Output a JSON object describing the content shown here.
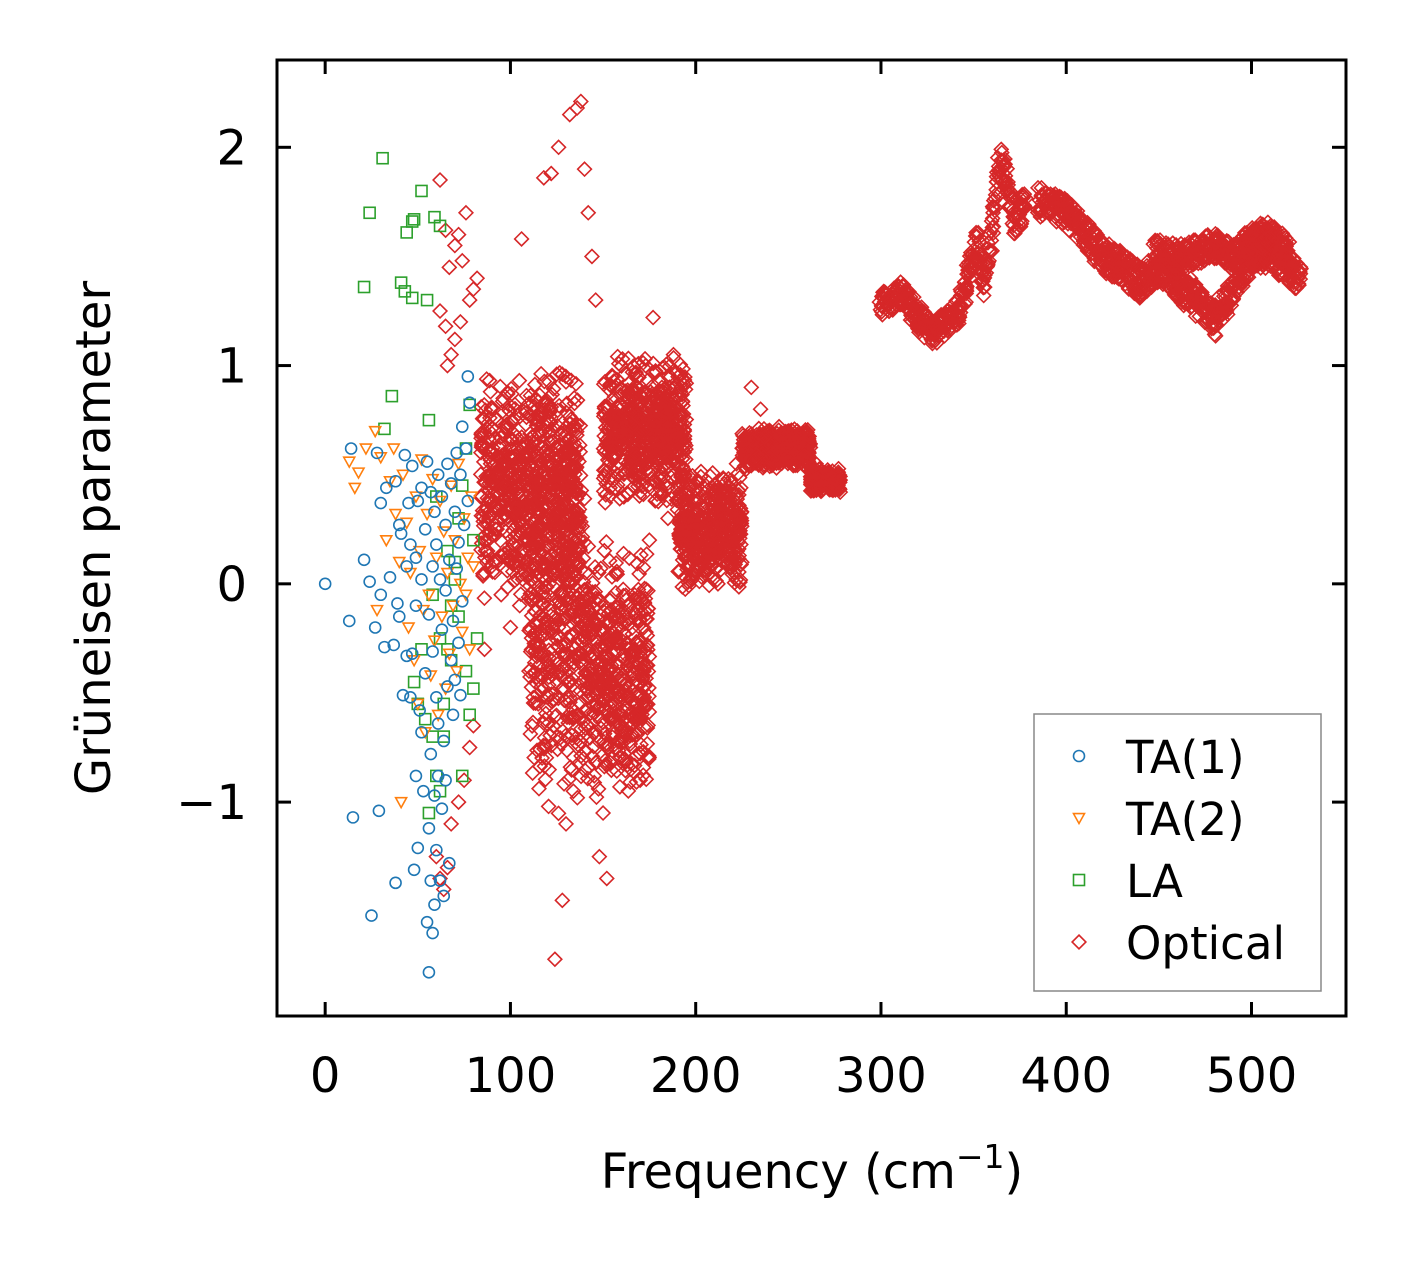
{
  "chart_data": {
    "type": "scatter",
    "xlabel": "Frequency (cm",
    "xlabel_sup": "−1",
    "xlabel_close": ")",
    "ylabel": "Grüneisen parameter",
    "xlim": [
      -26,
      551
    ],
    "ylim": [
      -1.98,
      2.4
    ],
    "xticks": [
      0,
      100,
      200,
      300,
      400,
      500
    ],
    "xtick_labels": [
      "0",
      "100",
      "200",
      "300",
      "400",
      "500"
    ],
    "yticks": [
      -1,
      0,
      1,
      2
    ],
    "ytick_labels": [
      "−1",
      "0",
      "1",
      "2"
    ],
    "legend_position": "bottom-right",
    "series": [
      {
        "name": "TA(1)",
        "marker": "circle",
        "color": "#1f77b4",
        "points": [
          [
            0,
            0
          ],
          [
            13,
            -0.17
          ],
          [
            14,
            0.62
          ],
          [
            15,
            -1.07
          ],
          [
            21,
            0.11
          ],
          [
            24,
            0.01
          ],
          [
            25,
            -1.52
          ],
          [
            27,
            -0.2
          ],
          [
            28,
            0.6
          ],
          [
            29,
            -1.04
          ],
          [
            30,
            0.37
          ],
          [
            30,
            -0.05
          ],
          [
            32,
            -0.29
          ],
          [
            33,
            0.44
          ],
          [
            35,
            0.03
          ],
          [
            37,
            -0.28
          ],
          [
            38,
            -1.37
          ],
          [
            38,
            0.47
          ],
          [
            39,
            -0.09
          ],
          [
            40,
            0.27
          ],
          [
            40,
            -0.15
          ],
          [
            41,
            0.23
          ],
          [
            42,
            -0.51
          ],
          [
            43,
            0.59
          ],
          [
            44,
            0.08
          ],
          [
            44,
            -0.33
          ],
          [
            45,
            0.37
          ],
          [
            46,
            0.18
          ],
          [
            46,
            -0.52
          ],
          [
            47,
            0.54
          ],
          [
            47,
            -0.32
          ],
          [
            48,
            -1.31
          ],
          [
            49,
            0.12
          ],
          [
            49,
            -0.1
          ],
          [
            49,
            -0.88
          ],
          [
            50,
            0.38
          ],
          [
            50,
            -1.21
          ],
          [
            51,
            -0.58
          ],
          [
            52,
            0.02
          ],
          [
            52,
            0.44
          ],
          [
            52,
            -0.68
          ],
          [
            53,
            -0.95
          ],
          [
            54,
            0.25
          ],
          [
            54,
            -0.41
          ],
          [
            55,
            -1.55
          ],
          [
            55,
            0.56
          ],
          [
            56,
            -0.14
          ],
          [
            56,
            -1.12
          ],
          [
            56,
            -1.78
          ],
          [
            57,
            0.42
          ],
          [
            57,
            -0.78
          ],
          [
            57,
            -1.36
          ],
          [
            58,
            0.08
          ],
          [
            58,
            -0.31
          ],
          [
            58,
            -1.6
          ],
          [
            59,
            0.33
          ],
          [
            59,
            -0.97
          ],
          [
            59,
            -1.47
          ],
          [
            60,
            -0.52
          ],
          [
            60,
            0.18
          ],
          [
            60,
            -1.22
          ],
          [
            61,
            0.5
          ],
          [
            61,
            -0.64
          ],
          [
            61,
            -0.88
          ],
          [
            62,
            -1.36
          ],
          [
            62,
            0.02
          ],
          [
            63,
            -0.21
          ],
          [
            63,
            -1.03
          ],
          [
            63,
            0.4
          ],
          [
            64,
            -1.43
          ],
          [
            64,
            -0.72
          ],
          [
            65,
            0.27
          ],
          [
            65,
            -0.03
          ],
          [
            65,
            -0.9
          ],
          [
            66,
            0.55
          ],
          [
            66,
            -0.47
          ],
          [
            67,
            -1.28
          ],
          [
            67,
            0.11
          ],
          [
            68,
            -0.35
          ],
          [
            68,
            0.46
          ],
          [
            69,
            -0.6
          ],
          [
            69,
            -0.17
          ],
          [
            70,
            0.33
          ],
          [
            70,
            -0.44
          ],
          [
            71,
            0.07
          ],
          [
            71,
            0.6
          ],
          [
            72,
            -0.27
          ],
          [
            72,
            0.19
          ],
          [
            73,
            -0.51
          ],
          [
            73,
            0.5
          ],
          [
            74,
            -0.08
          ],
          [
            74,
            0.72
          ],
          [
            75,
            0.27
          ],
          [
            76,
            0.62
          ],
          [
            77,
            0.95
          ],
          [
            77,
            0.38
          ],
          [
            78,
            0.83
          ]
        ]
      },
      {
        "name": "TA(2)",
        "marker": "triangle-down",
        "color": "#ff7f0e",
        "points": [
          [
            13,
            0.56
          ],
          [
            16,
            0.44
          ],
          [
            18,
            0.51
          ],
          [
            22,
            0.62
          ],
          [
            27,
            0.7
          ],
          [
            28,
            -0.12
          ],
          [
            30,
            0.58
          ],
          [
            33,
            0.2
          ],
          [
            35,
            0.47
          ],
          [
            37,
            0.62
          ],
          [
            38,
            0.32
          ],
          [
            40,
            0.1
          ],
          [
            41,
            -1.0
          ],
          [
            42,
            0.5
          ],
          [
            44,
            0.28
          ],
          [
            45,
            -0.2
          ],
          [
            46,
            0.05
          ],
          [
            48,
            -0.35
          ],
          [
            49,
            0.4
          ],
          [
            50,
            -0.55
          ],
          [
            51,
            0.15
          ],
          [
            52,
            0.57
          ],
          [
            53,
            -0.12
          ],
          [
            54,
            -0.68
          ],
          [
            55,
            0.32
          ],
          [
            56,
            -0.05
          ],
          [
            57,
            -0.42
          ],
          [
            58,
            0.48
          ],
          [
            59,
            -0.26
          ],
          [
            60,
            0.12
          ],
          [
            61,
            -0.6
          ],
          [
            62,
            0.38
          ],
          [
            63,
            -0.15
          ],
          [
            64,
            0.24
          ],
          [
            65,
            -0.48
          ],
          [
            66,
            0.05
          ],
          [
            67,
            -0.32
          ],
          [
            68,
            0.45
          ],
          [
            69,
            -0.1
          ],
          [
            70,
            0.2
          ],
          [
            71,
            -0.4
          ],
          [
            72,
            0.55
          ],
          [
            73,
            0.0
          ],
          [
            74,
            -0.22
          ],
          [
            75,
            0.3
          ],
          [
            76,
            -0.05
          ],
          [
            77,
            0.12
          ],
          [
            78,
            -0.3
          ],
          [
            79,
            0.4
          ],
          [
            80,
            0.08
          ]
        ]
      },
      {
        "name": "LA",
        "marker": "square",
        "color": "#2ca02c",
        "points": [
          [
            21,
            1.36
          ],
          [
            24,
            1.7
          ],
          [
            31,
            1.95
          ],
          [
            32,
            0.71
          ],
          [
            36,
            0.86
          ],
          [
            41,
            1.38
          ],
          [
            43,
            1.34
          ],
          [
            44,
            1.61
          ],
          [
            47,
            1.66
          ],
          [
            47,
            1.31
          ],
          [
            48,
            1.67
          ],
          [
            52,
            1.8
          ],
          [
            55,
            1.3
          ],
          [
            59,
            1.68
          ],
          [
            62,
            1.64
          ],
          [
            56,
            0.75
          ],
          [
            58,
            -0.7
          ],
          [
            60,
            -0.88
          ],
          [
            62,
            -0.95
          ],
          [
            64,
            -0.55
          ],
          [
            66,
            -0.3
          ],
          [
            68,
            -0.1
          ],
          [
            70,
            0.1
          ],
          [
            72,
            0.3
          ],
          [
            74,
            0.45
          ],
          [
            76,
            0.62
          ],
          [
            78,
            0.82
          ],
          [
            80,
            0.2
          ],
          [
            82,
            -0.25
          ],
          [
            80,
            -0.48
          ],
          [
            78,
            -0.6
          ],
          [
            76,
            -0.4
          ],
          [
            74,
            -0.88
          ],
          [
            72,
            -0.15
          ],
          [
            70,
            0.02
          ],
          [
            68,
            -0.35
          ],
          [
            66,
            0.15
          ],
          [
            64,
            -0.7
          ],
          [
            62,
            -0.25
          ],
          [
            60,
            0.4
          ],
          [
            58,
            -0.05
          ],
          [
            56,
            -1.05
          ],
          [
            54,
            -0.62
          ],
          [
            52,
            -0.3
          ],
          [
            50,
            -0.55
          ],
          [
            48,
            -0.45
          ]
        ]
      },
      {
        "name": "Optical",
        "marker": "diamond",
        "color": "#d62728",
        "points": [
          [
            62,
            1.85
          ],
          [
            65,
            1.62
          ],
          [
            67,
            1.45
          ],
          [
            70,
            1.55
          ],
          [
            72,
            1.6
          ],
          [
            74,
            1.48
          ],
          [
            76,
            1.7
          ],
          [
            78,
            1.3
          ],
          [
            80,
            1.35
          ],
          [
            82,
            1.4
          ],
          [
            62,
            1.25
          ],
          [
            65,
            1.18
          ],
          [
            68,
            1.05
          ],
          [
            70,
            1.12
          ],
          [
            73,
            1.2
          ],
          [
            66,
            1.0
          ],
          [
            60,
            -1.25
          ],
          [
            62,
            -1.35
          ],
          [
            64,
            -1.4
          ],
          [
            66,
            -1.3
          ],
          [
            68,
            -1.1
          ],
          [
            72,
            -1.0
          ],
          [
            75,
            -0.9
          ],
          [
            78,
            -0.75
          ],
          [
            80,
            -0.65
          ],
          [
            86,
            -0.3
          ],
          [
            95,
            -0.05
          ],
          [
            100,
            -0.2
          ],
          [
            105,
            -0.1
          ],
          [
            106,
            1.58
          ],
          [
            110,
            -0.4
          ],
          [
            115,
            -0.55
          ],
          [
            118,
            1.86
          ],
          [
            118,
            -0.48
          ],
          [
            122,
            1.88
          ],
          [
            124,
            -1.72
          ],
          [
            126,
            2.0
          ],
          [
            128,
            -1.45
          ],
          [
            130,
            -1.1
          ],
          [
            132,
            2.15
          ],
          [
            134,
            -0.95
          ],
          [
            136,
            2.18
          ],
          [
            138,
            2.21
          ],
          [
            140,
            1.9
          ],
          [
            142,
            1.7
          ],
          [
            144,
            1.5
          ],
          [
            146,
            1.3
          ],
          [
            148,
            -1.25
          ],
          [
            150,
            -1.05
          ],
          [
            152,
            -1.35
          ],
          [
            155,
            -0.8
          ],
          [
            160,
            -0.7
          ],
          [
            165,
            -0.85
          ],
          [
            170,
            -0.9
          ],
          [
            175,
            0.2
          ],
          [
            177,
            1.22
          ],
          [
            180,
            0.65
          ],
          [
            185,
            0.3
          ],
          [
            188,
            1.05
          ],
          [
            192,
            0.5
          ],
          [
            198,
            0.2
          ],
          [
            205,
            0.05
          ],
          [
            212,
            0.0
          ],
          [
            222,
            0.55
          ],
          [
            230,
            0.9
          ],
          [
            235,
            0.8
          ],
          [
            245,
            0.72
          ],
          [
            255,
            0.65
          ],
          [
            265,
            0.55
          ],
          [
            272,
            0.5
          ],
          [
            278,
            0.42
          ]
        ]
      }
    ],
    "optical_regions": [
      {
        "x": [
          84,
          138
        ],
        "y_center": 0.45,
        "spread": 0.55
      },
      {
        "x": [
          110,
          140
        ],
        "y_center": -0.2,
        "spread": 0.9
      },
      {
        "x": [
          150,
          195
        ],
        "y_center": 0.7,
        "spread": 0.35
      },
      {
        "x": [
          140,
          175
        ],
        "y_center": -0.4,
        "spread": 0.6
      },
      {
        "x": [
          190,
          225
        ],
        "y_center": 0.25,
        "spread": 0.28
      },
      {
        "x": [
          225,
          262
        ],
        "y_center": 0.62,
        "spread": 0.1
      },
      {
        "x": [
          262,
          278
        ],
        "y_center": 0.47,
        "spread": 0.06
      }
    ],
    "optical_bands": [
      {
        "path": [
          [
            300,
            1.29
          ],
          [
            312,
            1.33
          ],
          [
            320,
            1.22
          ],
          [
            328,
            1.15
          ],
          [
            335,
            1.2
          ],
          [
            342,
            1.25
          ],
          [
            348,
            1.45
          ],
          [
            352,
            1.55
          ],
          [
            356,
            1.38
          ],
          [
            360,
            1.62
          ],
          [
            364,
            1.95
          ],
          [
            368,
            1.85
          ],
          [
            372,
            1.65
          ],
          [
            378,
            1.75
          ]
        ],
        "thickness": 0.06
      },
      {
        "path": [
          [
            385,
            1.75
          ],
          [
            400,
            1.7
          ],
          [
            410,
            1.6
          ],
          [
            420,
            1.5
          ],
          [
            430,
            1.45
          ],
          [
            440,
            1.38
          ],
          [
            450,
            1.45
          ],
          [
            460,
            1.38
          ],
          [
            470,
            1.3
          ],
          [
            480,
            1.2
          ],
          [
            490,
            1.35
          ],
          [
            500,
            1.5
          ],
          [
            510,
            1.52
          ],
          [
            520,
            1.45
          ],
          [
            527,
            1.39
          ]
        ],
        "thickness": 0.07
      },
      {
        "path": [
          [
            448,
            1.52
          ],
          [
            460,
            1.5
          ],
          [
            470,
            1.52
          ],
          [
            480,
            1.55
          ],
          [
            490,
            1.5
          ],
          [
            500,
            1.58
          ],
          [
            510,
            1.6
          ],
          [
            520,
            1.52
          ]
        ],
        "thickness": 0.06
      }
    ]
  }
}
